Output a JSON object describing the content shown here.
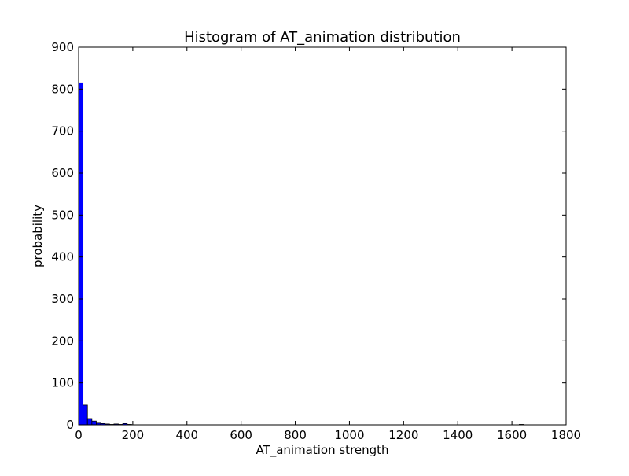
{
  "chart_data": {
    "type": "bar",
    "title": "Histogram of AT_animation  distribution",
    "xlabel": "AT_animation  strength",
    "ylabel": "probability",
    "xlim": [
      0,
      1800
    ],
    "ylim": [
      0,
      900
    ],
    "xticks": [
      "0",
      "200",
      "400",
      "600",
      "800",
      "1000",
      "1200",
      "1400",
      "1600",
      "1800"
    ],
    "yticks": [
      "0",
      "100",
      "200",
      "300",
      "400",
      "500",
      "600",
      "700",
      "800",
      "900"
    ],
    "bin_width": 16.3,
    "bins": [
      {
        "x": 0.0,
        "value": 815
      },
      {
        "x": 16.3,
        "value": 47
      },
      {
        "x": 32.6,
        "value": 15
      },
      {
        "x": 48.9,
        "value": 9
      },
      {
        "x": 65.2,
        "value": 4
      },
      {
        "x": 81.5,
        "value": 3
      },
      {
        "x": 97.8,
        "value": 2
      },
      {
        "x": 114.1,
        "value": 1
      },
      {
        "x": 130.4,
        "value": 2
      },
      {
        "x": 146.7,
        "value": 1
      },
      {
        "x": 163.0,
        "value": 3
      },
      {
        "x": 179.3,
        "value": 1
      },
      {
        "x": 1627.0,
        "value": 1
      }
    ],
    "bar_color": "#0000ff",
    "edge_color": "#000000",
    "grid": false
  }
}
